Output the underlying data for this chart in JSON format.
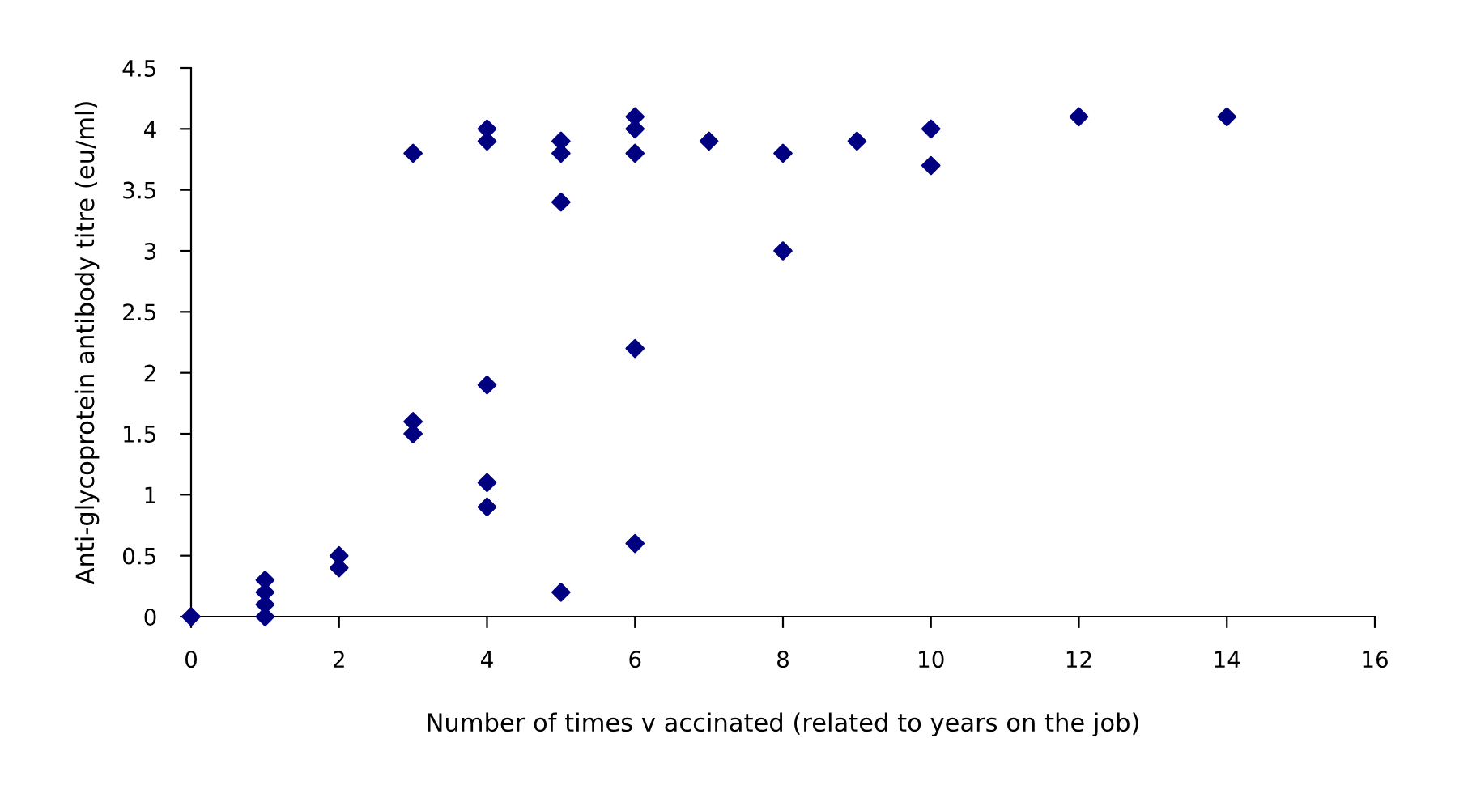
{
  "chart_data": {
    "type": "scatter",
    "xlabel": "Number of times v accinated (related to years on the job)",
    "ylabel": "Anti-glycoprotein antibody titre (eu/ml)",
    "x": [
      0,
      1,
      1,
      1,
      1,
      2,
      2,
      3,
      3,
      3,
      4,
      4,
      4,
      4,
      4,
      5,
      5,
      5,
      5,
      6,
      6,
      6,
      6,
      6,
      7,
      8,
      8,
      9,
      10,
      10,
      12,
      14
    ],
    "series": [
      {
        "color": "#000080",
        "values": [
          0,
          0.3,
          0.2,
          0.1,
          0,
          0.5,
          0.4,
          3.8,
          1.6,
          1.5,
          4.0,
          3.9,
          1.9,
          1.1,
          0.9,
          3.9,
          3.8,
          3.4,
          0.2,
          4.1,
          4.0,
          3.8,
          2.2,
          0.6,
          3.9,
          3.8,
          3.0,
          3.9,
          4.0,
          3.7,
          4.1,
          4.1
        ]
      }
    ],
    "xlim": [
      0,
      16
    ],
    "xticks": [
      0,
      2,
      4,
      6,
      8,
      10,
      12,
      14,
      16
    ],
    "ylim": [
      0,
      4.5
    ],
    "yticks": [
      0,
      0.5,
      1,
      1.5,
      2,
      2.5,
      3,
      3.5,
      4,
      4.5
    ],
    "marker": "diamond",
    "grid": false,
    "legend": false
  }
}
